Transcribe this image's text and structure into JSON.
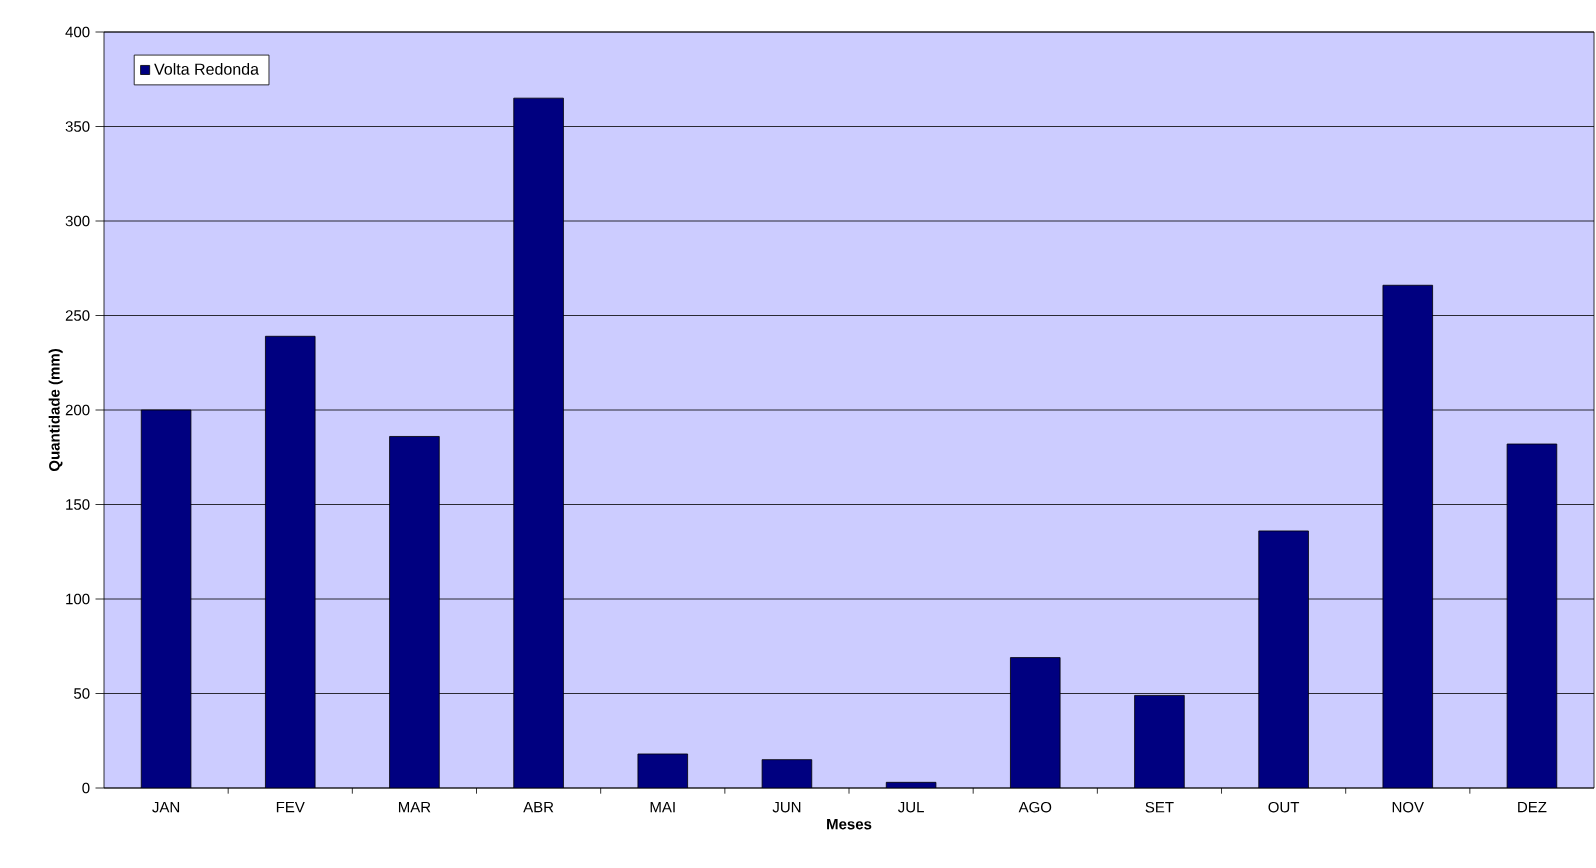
{
  "chart_data": {
    "type": "bar",
    "xlabel": "Meses",
    "ylabel": "Quantidade (mm)",
    "categories": [
      "JAN",
      "FEV",
      "MAR",
      "ABR",
      "MAI",
      "JUN",
      "JUL",
      "AGO",
      "SET",
      "OUT",
      "NOV",
      "DEZ"
    ],
    "series": [
      {
        "name": "Volta Redonda",
        "color": "#000080",
        "values": [
          200,
          239,
          186,
          365,
          18,
          15,
          3,
          69,
          49,
          136,
          266,
          182
        ]
      }
    ],
    "ylim": [
      0,
      400
    ],
    "yticks": [
      0,
      50,
      100,
      150,
      200,
      250,
      300,
      350,
      400
    ],
    "grid": "y",
    "legend": "top left"
  }
}
